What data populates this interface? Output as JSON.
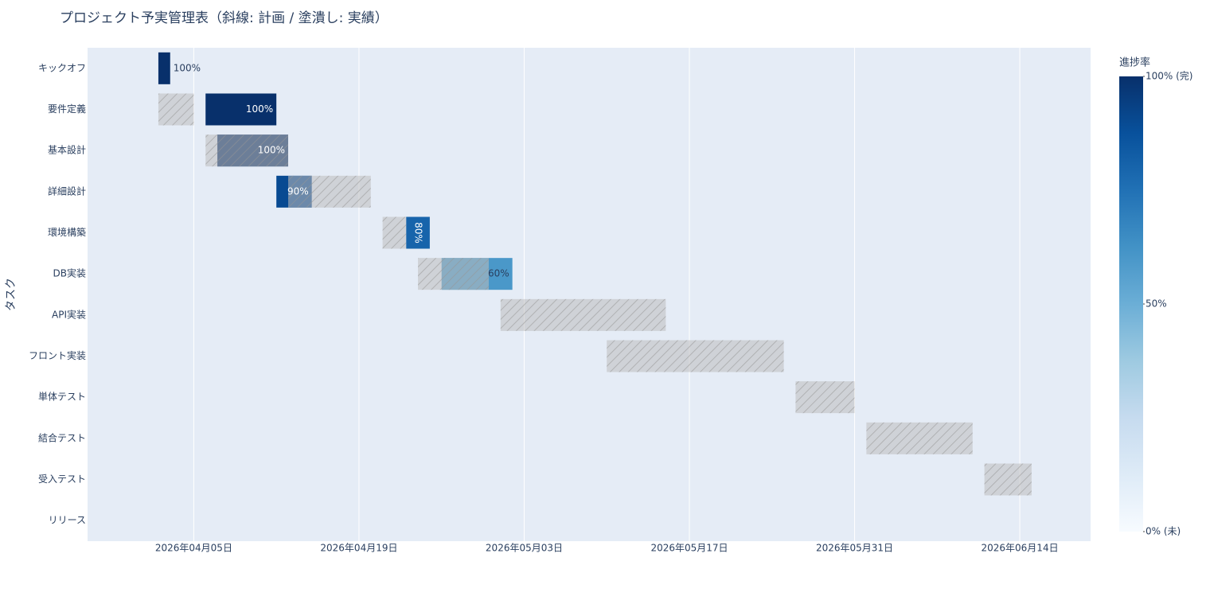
{
  "chart_data": {
    "type": "gantt",
    "title": "プロジェクト予実管理表（斜線: 計画 / 塗潰し: 実績）",
    "y_label": "タスク",
    "categories": [
      "キックオフ",
      "要件定義",
      "基本設計",
      "詳細設計",
      "環境構築",
      "DB実装",
      "API実装",
      "フロント実装",
      "単体テスト",
      "結合テスト",
      "受入テスト",
      "リリース"
    ],
    "planned_start": [
      null,
      "2026-04-02",
      "2026-04-06",
      "2026-04-13",
      "2026-04-21",
      "2026-04-24",
      "2026-05-01",
      "2026-05-10",
      "2026-05-26",
      "2026-06-01",
      "2026-06-11",
      null
    ],
    "planned_end": [
      null,
      "2026-04-05",
      "2026-04-13",
      "2026-04-20",
      "2026-04-23",
      "2026-04-30",
      "2026-05-15",
      "2026-05-25",
      "2026-05-31",
      "2026-06-10",
      "2026-06-15",
      null
    ],
    "actual_start": [
      "2026-04-02",
      "2026-04-06",
      "2026-04-07",
      "2026-04-12",
      "2026-04-23",
      "2026-04-26",
      null,
      null,
      null,
      null,
      null,
      null
    ],
    "actual_end": [
      "2026-04-03",
      "2026-04-12",
      "2026-04-13",
      "2026-04-15",
      "2026-04-25",
      "2026-05-02",
      null,
      null,
      null,
      null,
      null,
      null
    ],
    "values": [
      100,
      100,
      100,
      90,
      80,
      60,
      null,
      null,
      null,
      null,
      null,
      null
    ],
    "value_labels": [
      "100%",
      "100%",
      "100%",
      "90%",
      "80%",
      "60%",
      null,
      null,
      null,
      null,
      null,
      null
    ],
    "xlim": [
      "2026-03-27",
      "2026-06-20"
    ],
    "xticks": [
      {
        "value": "2026-04-05",
        "label": "2026年04月05日"
      },
      {
        "value": "2026-04-19",
        "label": "2026年04月19日"
      },
      {
        "value": "2026-05-03",
        "label": "2026年05月03日"
      },
      {
        "value": "2026-05-17",
        "label": "2026年05月17日"
      },
      {
        "value": "2026-05-31",
        "label": "2026年05月31日"
      },
      {
        "value": "2026-06-14",
        "label": "2026年06月14日"
      }
    ],
    "grid": true,
    "colorscale": [
      "#f7fbff",
      "#deebf7",
      "#c6dbef",
      "#9ecae1",
      "#6baed6",
      "#4292c6",
      "#2171b5",
      "#08519c",
      "#08306b"
    ],
    "colorbar": {
      "title": "進捗率",
      "lim": [
        0,
        100
      ],
      "ticks": [
        {
          "value": 100,
          "label": "100% (完)"
        },
        {
          "value": 50,
          "label": "50%"
        },
        {
          "value": 0,
          "label": "0% (未)"
        }
      ]
    }
  }
}
